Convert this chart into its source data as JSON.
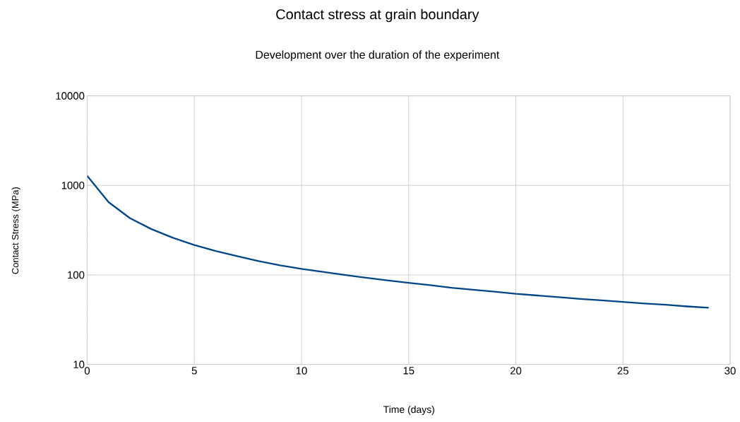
{
  "chart_data": {
    "type": "line",
    "title": "Contact stress at grain boundary",
    "subtitle": "Development over the duration of the experiment",
    "xlabel": "Time (days)",
    "ylabel": "Contact Stress (MPa)",
    "x": [
      0,
      1,
      2,
      3,
      4,
      5,
      6,
      7,
      8,
      9,
      10,
      11,
      12,
      13,
      14,
      15,
      16,
      17,
      18,
      19,
      20,
      21,
      22,
      23,
      24,
      25,
      26,
      27,
      28,
      29
    ],
    "series": [
      {
        "color": "#004586",
        "values": [
          1280,
          650,
          430,
          325,
          260,
          216,
          185,
          162,
          143,
          128,
          117,
          108,
          100,
          93,
          87,
          81.5,
          77,
          72,
          68.5,
          65,
          61.5,
          59,
          56.5,
          54,
          52,
          50,
          48,
          46.5,
          44.5,
          43
        ]
      }
    ],
    "xlim": [
      0,
      30
    ],
    "ylim": [
      10,
      10000
    ],
    "xticks": [
      0,
      5,
      10,
      15,
      20,
      25,
      30
    ],
    "yticks": [
      10,
      100,
      1000,
      10000
    ],
    "log": "y",
    "grid": true,
    "marker": "none",
    "line_style": "solid"
  }
}
